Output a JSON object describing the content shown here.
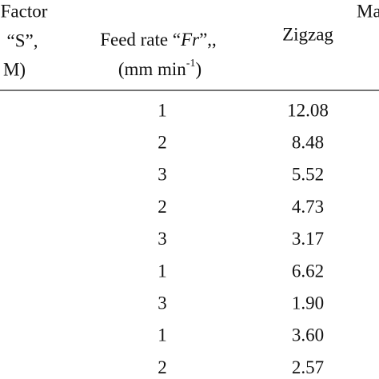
{
  "table": {
    "header": {
      "factor": "Factor",
      "speed_symbol": "“S”,",
      "speed_unit": "M)",
      "feed_rate": [
        "Feed rate “",
        "Fr",
        "”,,"
      ],
      "feed_rate_unit": [
        "(mm min",
        "-1",
        ")"
      ],
      "zigzag": "Zigzag",
      "material": "Ma"
    },
    "rows": [
      [
        "1",
        "12.08"
      ],
      [
        "2",
        "8.48"
      ],
      [
        "3",
        "5.52"
      ],
      [
        "2",
        "4.73"
      ],
      [
        "3",
        "3.17"
      ],
      [
        "1",
        "6.62"
      ],
      [
        "3",
        "1.90"
      ],
      [
        "1",
        "3.60"
      ],
      [
        "2",
        "2.57"
      ]
    ]
  }
}
